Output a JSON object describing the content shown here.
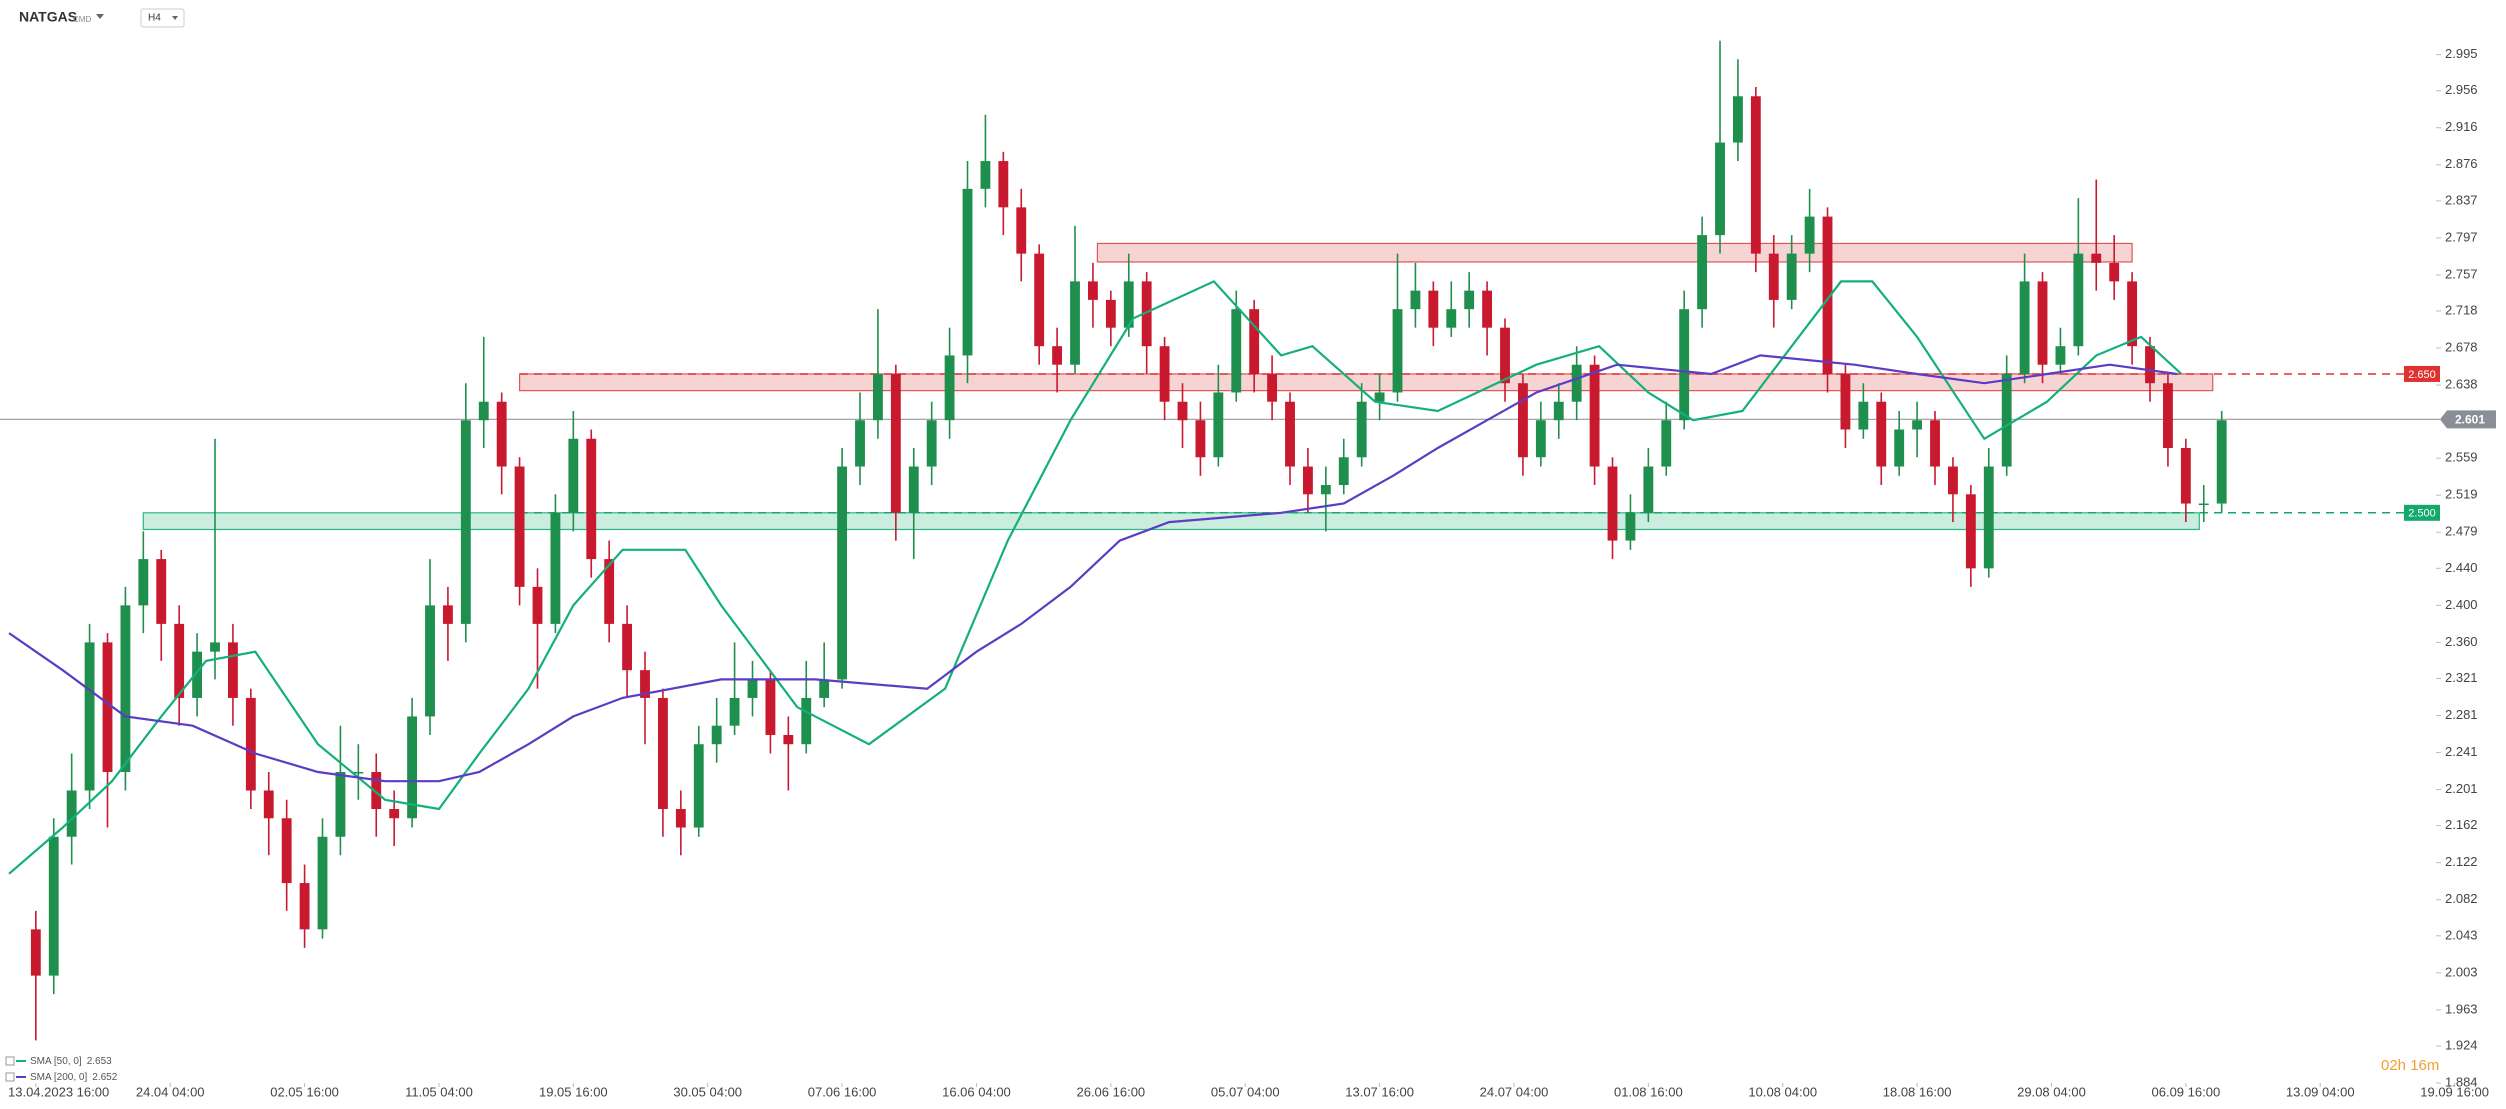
{
  "chart_data": {
    "type": "candlestick",
    "symbol": "NATGAS",
    "symbol_tag": "CMD",
    "timeframe": "H4",
    "countdown": "02h 16m",
    "up_color": "#1f8f4e",
    "down_color": "#c8192f",
    "xlim": [
      -8,
      545
    ],
    "ylim": [
      1.884,
      3.054
    ],
    "xticks": [
      {
        "value": 0,
        "label": "13.04.2023 16:00"
      },
      {
        "value": 30,
        "label": "24.04 04:00"
      },
      {
        "value": 60,
        "label": "02.05 16:00"
      },
      {
        "value": 90,
        "label": "11.05 04:00"
      },
      {
        "value": 120,
        "label": "19.05 16:00"
      },
      {
        "value": 150,
        "label": "30.05 04:00"
      },
      {
        "value": 180,
        "label": "07.06 16:00"
      },
      {
        "value": 210,
        "label": "16.06 04:00"
      },
      {
        "value": 240,
        "label": "26.06 16:00"
      },
      {
        "value": 270,
        "label": "05.07 04:00"
      },
      {
        "value": 300,
        "label": "13.07 16:00"
      },
      {
        "value": 330,
        "label": "24.07 04:00"
      },
      {
        "value": 360,
        "label": "01.08 16:00"
      },
      {
        "value": 390,
        "label": "10.08 04:00"
      },
      {
        "value": 420,
        "label": "18.08 16:00"
      },
      {
        "value": 450,
        "label": "29.08 04:00"
      },
      {
        "value": 480,
        "label": "06.09 16:00"
      },
      {
        "value": 510,
        "label": "13.09 04:00"
      },
      {
        "value": 540,
        "label": "19.09 16:00"
      }
    ],
    "yticks": [
      2.995,
      2.956,
      2.916,
      2.876,
      2.837,
      2.797,
      2.757,
      2.718,
      2.678,
      2.638,
      2.559,
      2.519,
      2.479,
      {
        "value": 2.44,
        "label": "2.440"
      },
      {
        "value": 2.4,
        "label": "2.400"
      },
      {
        "value": 2.36,
        "label": "2.360"
      },
      2.321,
      2.281,
      2.241,
      2.201,
      2.162,
      2.122,
      2.082,
      2.043,
      2.003,
      1.963,
      1.924,
      1.884
    ],
    "x": [
      0,
      4,
      8,
      12,
      16,
      20,
      24,
      28,
      32,
      36,
      40,
      44,
      48,
      52,
      56,
      60,
      64,
      68,
      72,
      76,
      80,
      84,
      88,
      92,
      96,
      100,
      104,
      108,
      112,
      116,
      120,
      124,
      128,
      132,
      136,
      140,
      144,
      148,
      152,
      156,
      160,
      164,
      168,
      172,
      176,
      180,
      184,
      188,
      192,
      196,
      200,
      204,
      208,
      212,
      216,
      220,
      224,
      228,
      232,
      236,
      240,
      244,
      248,
      252,
      256,
      260,
      264,
      268,
      272,
      276,
      280,
      284,
      288,
      292,
      296,
      300,
      304,
      308,
      312,
      316,
      320,
      324,
      328,
      332,
      336,
      340,
      344,
      348,
      352,
      356,
      360,
      364,
      368,
      372,
      376,
      380,
      384,
      388,
      392,
      396,
      400,
      404,
      408,
      412,
      416,
      420,
      424,
      428,
      432,
      436,
      440,
      444,
      448,
      452,
      456,
      460,
      464,
      468,
      472,
      476,
      480,
      484,
      488
    ],
    "open": [
      2.05,
      2.0,
      2.15,
      2.2,
      2.36,
      2.22,
      2.4,
      2.45,
      2.38,
      2.3,
      2.35,
      2.36,
      2.3,
      2.2,
      2.17,
      2.1,
      2.05,
      2.15,
      2.22,
      2.22,
      2.18,
      2.17,
      2.28,
      2.4,
      2.38,
      2.6,
      2.62,
      2.55,
      2.42,
      2.38,
      2.5,
      2.58,
      2.45,
      2.38,
      2.33,
      2.3,
      2.18,
      2.16,
      2.25,
      2.27,
      2.3,
      2.32,
      2.26,
      2.25,
      2.3,
      2.32,
      2.55,
      2.6,
      2.65,
      2.5,
      2.55,
      2.6,
      2.67,
      2.85,
      2.88,
      2.83,
      2.78,
      2.68,
      2.66,
      2.75,
      2.73,
      2.7,
      2.75,
      2.68,
      2.62,
      2.6,
      2.56,
      2.63,
      2.72,
      2.65,
      2.62,
      2.55,
      2.52,
      2.53,
      2.56,
      2.62,
      2.63,
      2.72,
      2.74,
      2.7,
      2.72,
      2.74,
      2.7,
      2.64,
      2.56,
      2.6,
      2.62,
      2.66,
      2.55,
      2.47,
      2.5,
      2.55,
      2.6,
      2.72,
      2.8,
      2.9,
      2.95,
      2.78,
      2.73,
      2.78,
      2.82,
      2.65,
      2.59,
      2.62,
      2.55,
      2.59,
      2.6,
      2.55,
      2.52,
      2.44,
      2.55,
      2.65,
      2.75,
      2.66,
      2.68,
      2.78,
      2.77,
      2.75,
      2.68,
      2.64,
      2.57,
      2.51,
      2.51
    ],
    "high": [
      2.07,
      2.17,
      2.24,
      2.38,
      2.37,
      2.42,
      2.48,
      2.46,
      2.4,
      2.37,
      2.58,
      2.38,
      2.31,
      2.22,
      2.19,
      2.12,
      2.17,
      2.27,
      2.25,
      2.24,
      2.2,
      2.3,
      2.45,
      2.42,
      2.64,
      2.69,
      2.63,
      2.56,
      2.44,
      2.52,
      2.61,
      2.59,
      2.47,
      2.4,
      2.35,
      2.31,
      2.2,
      2.27,
      2.3,
      2.36,
      2.34,
      2.33,
      2.28,
      2.34,
      2.36,
      2.57,
      2.63,
      2.72,
      2.66,
      2.57,
      2.62,
      2.7,
      2.88,
      2.93,
      2.89,
      2.85,
      2.79,
      2.7,
      2.81,
      2.77,
      2.74,
      2.78,
      2.76,
      2.69,
      2.64,
      2.62,
      2.66,
      2.74,
      2.73,
      2.67,
      2.63,
      2.57,
      2.55,
      2.58,
      2.64,
      2.65,
      2.78,
      2.77,
      2.75,
      2.75,
      2.76,
      2.75,
      2.71,
      2.65,
      2.62,
      2.64,
      2.68,
      2.67,
      2.56,
      2.52,
      2.57,
      2.62,
      2.74,
      2.82,
      3.01,
      2.99,
      2.96,
      2.8,
      2.8,
      2.85,
      2.83,
      2.66,
      2.64,
      2.63,
      2.61,
      2.62,
      2.61,
      2.56,
      2.53,
      2.57,
      2.67,
      2.78,
      2.76,
      2.7,
      2.84,
      2.86,
      2.8,
      2.76,
      2.69,
      2.65,
      2.58,
      2.53,
      2.61
    ],
    "low": [
      1.93,
      1.98,
      2.12,
      2.18,
      2.16,
      2.2,
      2.37,
      2.34,
      2.27,
      2.28,
      2.32,
      2.27,
      2.18,
      2.13,
      2.07,
      2.03,
      2.04,
      2.13,
      2.19,
      2.15,
      2.14,
      2.16,
      2.26,
      2.34,
      2.36,
      2.57,
      2.52,
      2.4,
      2.31,
      2.37,
      2.48,
      2.43,
      2.36,
      2.3,
      2.25,
      2.15,
      2.13,
      2.15,
      2.23,
      2.26,
      2.28,
      2.24,
      2.2,
      2.24,
      2.29,
      2.31,
      2.53,
      2.58,
      2.47,
      2.45,
      2.53,
      2.58,
      2.64,
      2.83,
      2.8,
      2.75,
      2.66,
      2.63,
      2.65,
      2.7,
      2.68,
      2.69,
      2.65,
      2.6,
      2.57,
      2.54,
      2.55,
      2.62,
      2.63,
      2.6,
      2.53,
      2.5,
      2.48,
      2.52,
      2.55,
      2.6,
      2.62,
      2.7,
      2.68,
      2.69,
      2.7,
      2.67,
      2.62,
      2.54,
      2.55,
      2.58,
      2.6,
      2.53,
      2.45,
      2.46,
      2.49,
      2.54,
      2.59,
      2.7,
      2.78,
      2.88,
      2.76,
      2.7,
      2.72,
      2.76,
      2.63,
      2.57,
      2.58,
      2.53,
      2.54,
      2.56,
      2.53,
      2.49,
      2.42,
      2.43,
      2.54,
      2.64,
      2.64,
      2.65,
      2.67,
      2.74,
      2.73,
      2.66,
      2.62,
      2.55,
      2.49,
      2.49,
      2.5
    ],
    "close": [
      2.0,
      2.15,
      2.2,
      2.36,
      2.22,
      2.4,
      2.45,
      2.38,
      2.3,
      2.35,
      2.36,
      2.3,
      2.2,
      2.17,
      2.1,
      2.05,
      2.15,
      2.22,
      2.22,
      2.18,
      2.17,
      2.28,
      2.4,
      2.38,
      2.6,
      2.62,
      2.55,
      2.42,
      2.38,
      2.5,
      2.58,
      2.45,
      2.38,
      2.33,
      2.3,
      2.18,
      2.16,
      2.25,
      2.27,
      2.3,
      2.32,
      2.26,
      2.25,
      2.3,
      2.32,
      2.55,
      2.6,
      2.65,
      2.5,
      2.55,
      2.6,
      2.67,
      2.85,
      2.88,
      2.83,
      2.78,
      2.68,
      2.66,
      2.75,
      2.73,
      2.7,
      2.75,
      2.68,
      2.62,
      2.6,
      2.56,
      2.63,
      2.72,
      2.65,
      2.62,
      2.55,
      2.52,
      2.53,
      2.56,
      2.62,
      2.63,
      2.72,
      2.74,
      2.7,
      2.72,
      2.74,
      2.7,
      2.64,
      2.56,
      2.6,
      2.62,
      2.66,
      2.55,
      2.47,
      2.5,
      2.55,
      2.6,
      2.72,
      2.8,
      2.9,
      2.95,
      2.78,
      2.73,
      2.78,
      2.82,
      2.65,
      2.59,
      2.62,
      2.55,
      2.59,
      2.6,
      2.55,
      2.52,
      2.44,
      2.55,
      2.65,
      2.75,
      2.66,
      2.68,
      2.78,
      2.77,
      2.75,
      2.68,
      2.64,
      2.57,
      2.51,
      2.51,
      2.6
    ],
    "series": [
      {
        "name": "SMA [50, 0]",
        "last": 2.653,
        "color": "#14b07a",
        "x": [
          -6,
          6,
          17,
          28,
          38,
          49,
          63,
          78,
          90,
          99,
          110,
          120,
          131,
          145,
          153,
          170,
          186,
          203,
          217,
          231,
          245,
          263,
          278,
          285,
          299,
          313,
          335,
          349,
          360,
          370,
          381,
          392,
          403,
          410,
          420,
          435,
          449,
          460,
          470,
          479
        ],
        "values": [
          2.11,
          2.16,
          2.21,
          2.28,
          2.34,
          2.35,
          2.25,
          2.19,
          2.18,
          2.24,
          2.31,
          2.4,
          2.46,
          2.46,
          2.4,
          2.29,
          2.25,
          2.31,
          2.47,
          2.6,
          2.71,
          2.75,
          2.67,
          2.68,
          2.62,
          2.61,
          2.66,
          2.68,
          2.63,
          2.6,
          2.61,
          2.68,
          2.75,
          2.75,
          2.69,
          2.58,
          2.62,
          2.67,
          2.69,
          2.65
        ]
      },
      {
        "name": "SMA [200, 0]",
        "last": 2.652,
        "color": "#5b3cc4",
        "x": [
          -6,
          6,
          20,
          35,
          49,
          63,
          78,
          90,
          99,
          110,
          120,
          131,
          153,
          174,
          199,
          210,
          220,
          231,
          242,
          253,
          278,
          292,
          303,
          313,
          324,
          335,
          353,
          374,
          385,
          406,
          420,
          435,
          449,
          463,
          478
        ],
        "values": [
          2.37,
          2.33,
          2.28,
          2.27,
          2.24,
          2.22,
          2.21,
          2.21,
          2.22,
          2.25,
          2.28,
          2.3,
          2.32,
          2.32,
          2.31,
          2.35,
          2.38,
          2.42,
          2.47,
          2.49,
          2.5,
          2.51,
          2.54,
          2.57,
          2.6,
          2.63,
          2.66,
          2.65,
          2.67,
          2.66,
          2.65,
          2.64,
          2.65,
          2.66,
          2.65
        ]
      }
    ],
    "zones": [
      {
        "low": 2.771,
        "high": 2.791,
        "x_start": 237,
        "x_end": 468,
        "color": "#e05555"
      },
      {
        "low": 2.632,
        "high": 2.65,
        "x_start": 108,
        "x_end": 486,
        "color": "#e05555"
      },
      {
        "low": 2.482,
        "high": 2.5,
        "x_start": 24,
        "x_end": 483,
        "color": "#2bb784"
      }
    ],
    "levels": [
      {
        "value": 2.65,
        "label": "2.650",
        "color": "#e03131"
      },
      {
        "value": 2.5,
        "label": "2.500",
        "color": "#14a86b"
      }
    ],
    "current_price": 2.601
  }
}
